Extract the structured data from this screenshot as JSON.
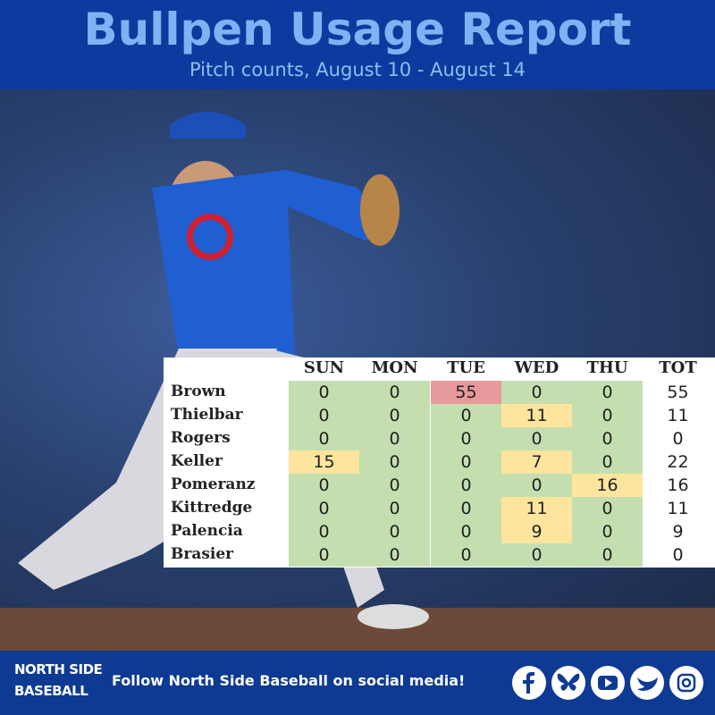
{
  "header": {
    "title": "Bullpen Usage Report",
    "subtitle": "Pitch counts, August 10 - August 14"
  },
  "table": {
    "columns": [
      "SUN",
      "MON",
      "TUE",
      "WED",
      "THU",
      "TOT"
    ],
    "rows": [
      {
        "name": "Brown",
        "values": [
          0,
          0,
          55,
          0,
          0,
          55
        ]
      },
      {
        "name": "Thielbar",
        "values": [
          0,
          0,
          0,
          11,
          0,
          11
        ]
      },
      {
        "name": "Rogers",
        "values": [
          0,
          0,
          0,
          0,
          0,
          0
        ]
      },
      {
        "name": "Keller",
        "values": [
          15,
          0,
          0,
          7,
          0,
          22
        ]
      },
      {
        "name": "Pomeranz",
        "values": [
          0,
          0,
          0,
          0,
          16,
          16
        ]
      },
      {
        "name": "Kittredge",
        "values": [
          0,
          0,
          0,
          11,
          0,
          11
        ]
      },
      {
        "name": "Palencia",
        "values": [
          0,
          0,
          0,
          9,
          0,
          9
        ]
      },
      {
        "name": "Brasier",
        "values": [
          0,
          0,
          0,
          0,
          0,
          0
        ]
      }
    ]
  },
  "footer": {
    "logo_line1": "NORTH SIDE",
    "logo_line2": "BASEBALL",
    "text": "Follow North Side Baseball on social media!"
  }
}
